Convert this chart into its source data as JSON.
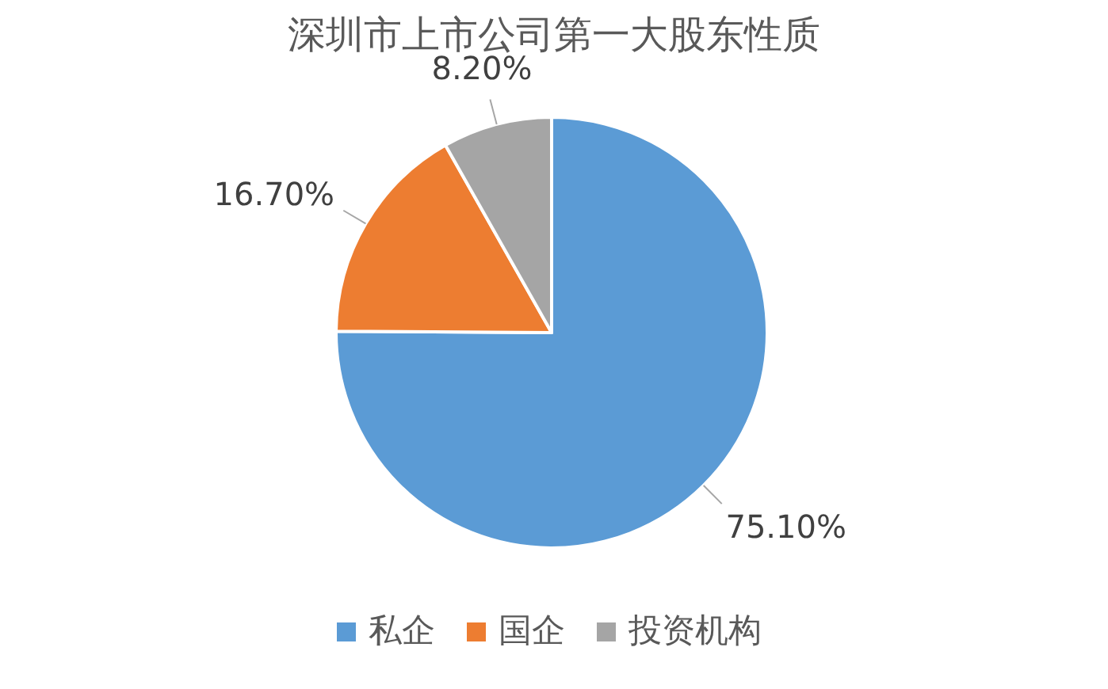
{
  "chart_data": {
    "type": "pie",
    "title": "深圳市上市公司第一大股东性质",
    "categories": [
      "私企",
      "国企",
      "投资机构"
    ],
    "values": [
      75.1,
      16.7,
      8.2
    ],
    "colors": [
      "#5b9bd5",
      "#ed7d31",
      "#a5a5a5"
    ],
    "value_labels": [
      "75.10%",
      "16.70%",
      "8.20%"
    ],
    "legend": "bottom"
  }
}
